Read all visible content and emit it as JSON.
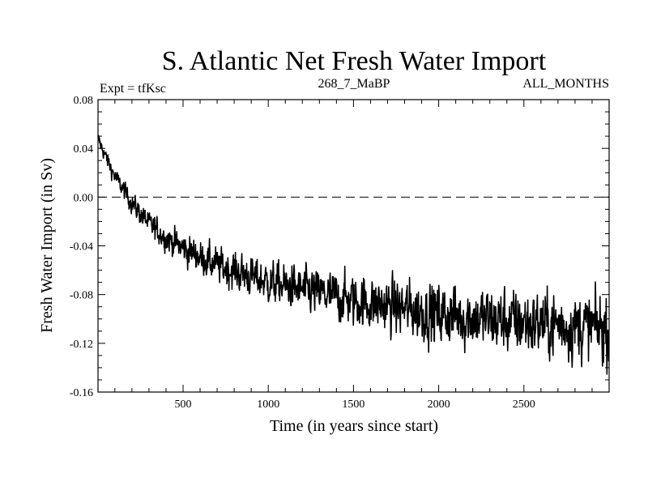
{
  "chart_data": {
    "type": "line",
    "title": "S. Atlantic Net Fresh Water Import",
    "experiment_label": "Expt = tfKsc",
    "run_label": "268_7_MaBP",
    "months_label": "ALL_MONTHS",
    "xlabel": "Time (in years since start)",
    "ylabel": "Fresh Water Import (in Sv)",
    "xlim": [
      1,
      3000
    ],
    "ylim": [
      -0.16,
      0.08
    ],
    "x_ticks": [
      500,
      1000,
      1500,
      2000,
      2500
    ],
    "x_tick_labels": [
      "500",
      "1000",
      "1500",
      "2000",
      "2500"
    ],
    "y_ticks": [
      0.08,
      0.04,
      0.0,
      -0.04,
      -0.08,
      -0.12,
      -0.16
    ],
    "y_tick_labels": [
      "0.08",
      "0.04",
      "0.00",
      "-0.04",
      "-0.08",
      "-0.12",
      "-0.16"
    ],
    "reference_line": {
      "y": 0.0,
      "style": "dashed"
    },
    "line_color": "#000000",
    "series": [
      {
        "name": "Net fresh water import",
        "trend_x": [
          1,
          50,
          100,
          150,
          200,
          300,
          400,
          500,
          700,
          1000,
          1500,
          2000,
          2500,
          3000
        ],
        "trend_y": [
          0.048,
          0.032,
          0.017,
          0.006,
          -0.005,
          -0.022,
          -0.033,
          -0.042,
          -0.056,
          -0.07,
          -0.085,
          -0.096,
          -0.103,
          -0.108
        ],
        "noise_amplitude_x": [
          1,
          200,
          500,
          1000,
          1500,
          2000,
          2500,
          3000
        ],
        "noise_amplitude_y": [
          0.004,
          0.006,
          0.009,
          0.012,
          0.015,
          0.018,
          0.019,
          0.02
        ]
      }
    ]
  }
}
